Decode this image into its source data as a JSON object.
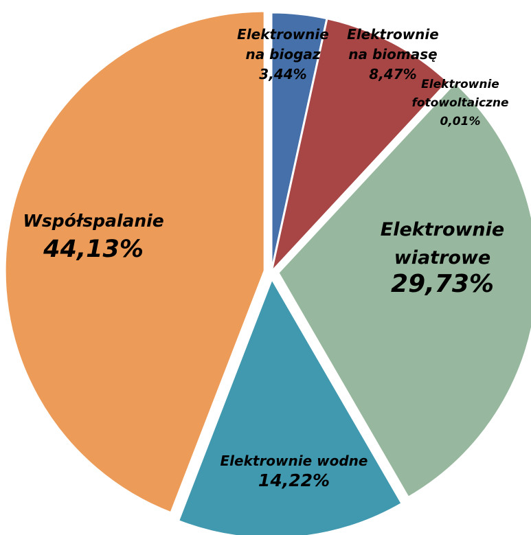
{
  "chart_data": {
    "type": "pie",
    "title": "",
    "slices": [
      {
        "key": "biogaz",
        "name_lines": [
          "Elektrownie",
          "na biogaz"
        ],
        "value": 3.44,
        "value_label": "3,44%",
        "color": "#4670A9"
      },
      {
        "key": "biomasa",
        "name_lines": [
          "Elektrownie",
          "na biomasę"
        ],
        "value": 8.47,
        "value_label": "8,47%",
        "color": "#A84646"
      },
      {
        "key": "fotowoltaiczne",
        "name_lines": [
          "Elektrownie",
          "fotowoltaiczne"
        ],
        "value": 0.01,
        "value_label": "0,01%",
        "color": "#7F9D54"
      },
      {
        "key": "wiatrowe",
        "name_lines": [
          "Elektrownie",
          "wiatrowe"
        ],
        "value": 29.73,
        "value_label": "29,73%",
        "color": "#97B89E"
      },
      {
        "key": "wodne",
        "name_lines": [
          "Elektrownie wodne"
        ],
        "value": 14.22,
        "value_label": "14,22%",
        "color": "#4199AF"
      },
      {
        "key": "wspolspalanie",
        "name_lines": [
          "Współspalanie"
        ],
        "value": 44.13,
        "value_label": "44,13%",
        "color": "#EC9C58"
      }
    ],
    "legend": "none"
  }
}
